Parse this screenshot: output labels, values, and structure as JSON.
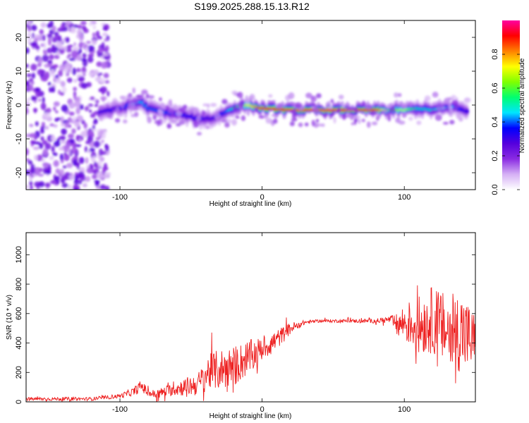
{
  "title": "S199.2025.288.15.13.R12",
  "chart_data": [
    {
      "type": "heatmap",
      "xlabel": "Height of straight line (km)",
      "ylabel": "Frequency (Hz)",
      "xlim": [
        -166,
        150
      ],
      "ylim": [
        -25,
        25
      ],
      "xticks": [
        -100,
        0,
        100
      ],
      "yticks": [
        -20,
        -10,
        0,
        10,
        20
      ],
      "colorbar": {
        "label": "Normalized spectral amplitude",
        "range": [
          0,
          1
        ],
        "ticks": [
          0.0,
          0.2,
          0.4,
          0.6,
          0.8
        ],
        "tick_labels": [
          "0.0",
          "0.2",
          "0.4",
          "0.6",
          "0.8"
        ],
        "colormap": [
          "#ffffff",
          "#d5b0f5",
          "#8a2be2",
          "#5500dd",
          "#0000ff",
          "#00e5ff",
          "#00ff70",
          "#80ff00",
          "#ffff00",
          "#ff8000",
          "#ff0000",
          "#ff00a0"
        ]
      },
      "signal_track": {
        "x": [
          -114,
          -100,
          -85,
          -80,
          -70,
          -55,
          -45,
          -35,
          -25,
          -18,
          -10,
          0,
          20,
          40,
          60,
          80,
          90,
          100,
          110,
          120,
          135,
          145
        ],
        "freq": [
          -2,
          -1,
          1,
          -1,
          -2,
          -3,
          -4,
          -4,
          -2,
          -0.5,
          0,
          -1,
          -1.5,
          -1.5,
          -1.5,
          -1.5,
          -1.5,
          -1.5,
          -1,
          -1.5,
          -0.5,
          -2
        ],
        "amplitude": [
          0.3,
          0.35,
          0.45,
          0.4,
          0.4,
          0.35,
          0.35,
          0.3,
          0.4,
          0.6,
          0.7,
          0.9,
          0.9,
          0.95,
          0.95,
          0.9,
          0.6,
          0.7,
          0.5,
          0.5,
          0.45,
          0.3
        ]
      },
      "noise_region": {
        "x_range": [
          -166,
          -108
        ],
        "amplitude": 0.15
      }
    },
    {
      "type": "line",
      "xlabel": "Height of straight line (km)",
      "ylabel": "SNR (10 * v/v)",
      "xlim": [
        -166,
        150
      ],
      "ylim": [
        0,
        1150
      ],
      "xticks": [
        -100,
        0,
        100
      ],
      "yticks": [
        0,
        200,
        400,
        600,
        800,
        1000
      ],
      "color": "#ee2020",
      "series": [
        {
          "name": "SNR",
          "x": [
            -166,
            -120,
            -100,
            -90,
            -85,
            -80,
            -75,
            -65,
            -55,
            -45,
            -38,
            -30,
            -20,
            -10,
            0,
            10,
            20,
            30,
            40,
            60,
            80,
            90,
            95,
            100,
            110,
            120,
            130,
            140,
            150
          ],
          "mean": [
            20,
            20,
            40,
            70,
            110,
            60,
            50,
            80,
            100,
            120,
            200,
            220,
            240,
            300,
            360,
            420,
            500,
            540,
            550,
            550,
            550,
            560,
            520,
            540,
            520,
            560,
            480,
            480,
            400
          ],
          "amplitude": [
            12,
            12,
            15,
            30,
            40,
            30,
            30,
            40,
            60,
            80,
            120,
            140,
            140,
            120,
            80,
            70,
            40,
            15,
            10,
            12,
            15,
            25,
            80,
            130,
            200,
            230,
            250,
            280,
            200
          ]
        }
      ]
    }
  ]
}
